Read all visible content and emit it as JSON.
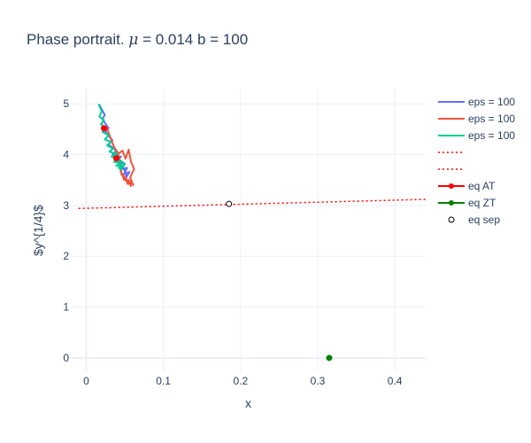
{
  "chart_data": {
    "type": "line",
    "title": {
      "prefix": "Phase portrait. ",
      "mu_symbol": "μ",
      "suffix": " = 0.014 b = 100"
    },
    "xlabel": "x",
    "ylabel": "$y^{1/4}$",
    "xlim": [
      -0.02,
      0.44
    ],
    "ylim": [
      -0.28,
      5.3
    ],
    "xticks": [
      0,
      0.1,
      0.2,
      0.3,
      0.4
    ],
    "xtick_labels": [
      "0",
      "0.1",
      "0.2",
      "0.3",
      "0.4"
    ],
    "yticks": [
      0,
      1,
      2,
      3,
      4,
      5
    ],
    "ytick_labels": [
      "0",
      "1",
      "2",
      "3",
      "4",
      "5"
    ],
    "series": [
      {
        "name": "eps = 100",
        "kind": "line",
        "color": "#636efa",
        "x": [
          0.017,
          0.024,
          0.021,
          0.029,
          0.025,
          0.034,
          0.029,
          0.039,
          0.034,
          0.045,
          0.04,
          0.05,
          0.046,
          0.053,
          0.049,
          0.056,
          0.052,
          0.05,
          0.045
        ],
        "y": [
          4.98,
          4.78,
          4.7,
          4.52,
          4.45,
          4.28,
          4.2,
          4.08,
          4.0,
          3.96,
          3.86,
          3.82,
          3.72,
          3.74,
          3.62,
          3.66,
          3.56,
          3.68,
          3.78
        ]
      },
      {
        "name": "eps = 100",
        "kind": "line",
        "color": "#ef553b",
        "x": [
          0.026,
          0.031,
          0.036,
          0.042,
          0.047,
          0.051,
          0.055,
          0.058,
          0.062,
          0.057,
          0.061,
          0.055,
          0.058,
          0.051,
          0.054,
          0.047,
          0.049,
          0.044,
          0.046,
          0.043,
          0.041
        ],
        "y": [
          4.55,
          4.35,
          4.15,
          4.02,
          4.08,
          3.92,
          4.1,
          3.86,
          3.72,
          3.55,
          3.4,
          3.5,
          3.38,
          3.55,
          3.42,
          3.62,
          3.5,
          3.72,
          3.6,
          3.92,
          4.02
        ]
      },
      {
        "name": "eps = 100",
        "kind": "line",
        "color": "#00cc96",
        "x": [
          0.016,
          0.02,
          0.017,
          0.023,
          0.019,
          0.026,
          0.021,
          0.029,
          0.024,
          0.032,
          0.027,
          0.035,
          0.03,
          0.038,
          0.033,
          0.041,
          0.036,
          0.044,
          0.039,
          0.046,
          0.042,
          0.048,
          0.044,
          0.05,
          0.043,
          0.038
        ],
        "y": [
          5.0,
          4.85,
          4.75,
          4.68,
          4.6,
          4.52,
          4.45,
          4.38,
          4.3,
          4.25,
          4.18,
          4.12,
          4.06,
          4.02,
          3.96,
          3.92,
          3.86,
          3.84,
          3.78,
          3.8,
          3.74,
          3.76,
          3.7,
          3.82,
          3.9,
          4.05
        ]
      },
      {
        "name": "",
        "kind": "dotted",
        "color": "#ff0000",
        "x": [
          -0.01,
          0.44
        ],
        "y": [
          2.94,
          3.12
        ]
      },
      {
        "name": "",
        "kind": "dotted",
        "color": "#ff0000",
        "x": [],
        "y": []
      },
      {
        "name": "eq AT",
        "kind": "marker",
        "color": "#ff0000",
        "x": [
          0.023,
          0.039
        ],
        "y": [
          4.52,
          3.93
        ]
      },
      {
        "name": "eq ZT",
        "kind": "marker",
        "color": "#008000",
        "x": [
          0.315
        ],
        "y": [
          0.0
        ]
      },
      {
        "name": "eq sep",
        "kind": "open-marker",
        "color": "#000000",
        "x": [
          0.185
        ],
        "y": [
          3.03
        ]
      }
    ]
  }
}
